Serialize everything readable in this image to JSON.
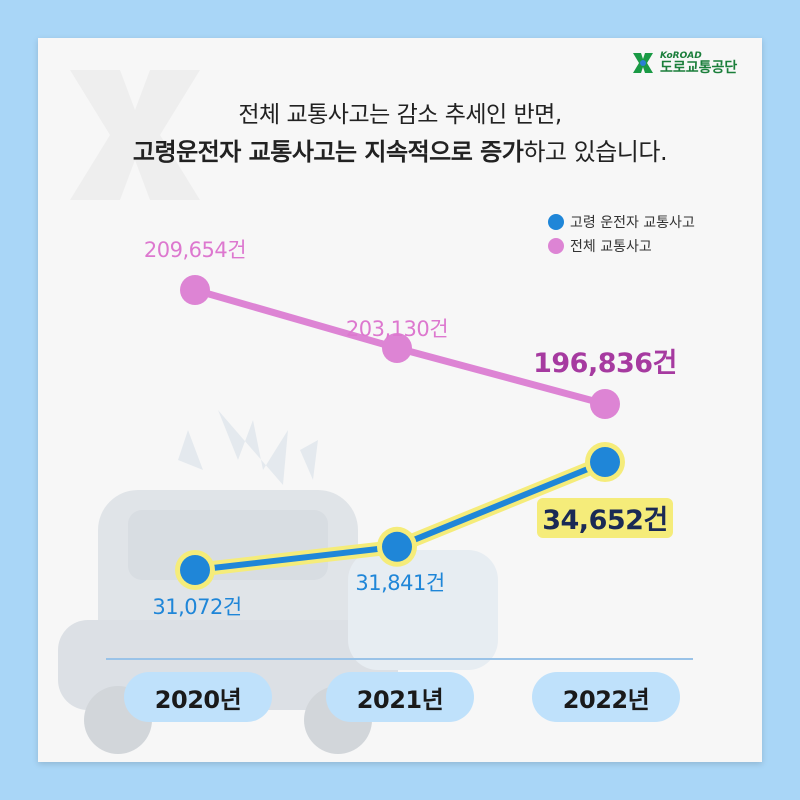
{
  "logo": {
    "sub": "KoROAD",
    "main": "도로교통공단"
  },
  "headline": {
    "line1": "전체 교통사고는 감소 추세인 반면,",
    "line2_bold": "고령운전자 교통사고는 지속적으로 증가",
    "line2_rest": "하고 있습니다."
  },
  "colors": {
    "elder": "#1f86d8",
    "total": "#dd84d4",
    "highlight": "#f5ec7a",
    "axis": "#9ac3e8",
    "pill": "#bfe1fb"
  },
  "chart_data": {
    "type": "line",
    "categories": [
      "2020년",
      "2021년",
      "2022년"
    ],
    "series": [
      {
        "name": "고령 운전자 교통사고",
        "values": [
          31072,
          31841,
          34652
        ],
        "labels": [
          "31,072건",
          "31,841건",
          "34,652건"
        ],
        "color": "#1f86d8"
      },
      {
        "name": "전체 교통사고",
        "values": [
          209654,
          203130,
          196836
        ],
        "labels": [
          "209,654건",
          "203,130건",
          "196,836건"
        ],
        "color": "#dd84d4"
      }
    ]
  }
}
